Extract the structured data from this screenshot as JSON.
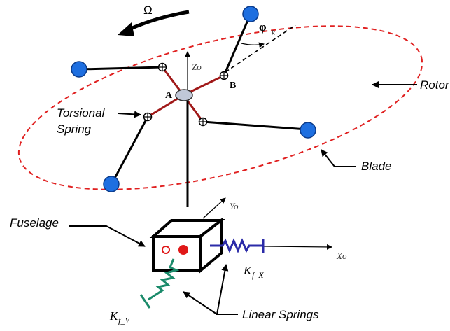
{
  "labels": {
    "omega": "Ω",
    "phi": "φ",
    "phi_sub": "k",
    "z_axis": "Zo",
    "y_axis": "Yo",
    "x_axis": "Xo",
    "point_a": "A",
    "point_b": "B",
    "rotor": "Rotor",
    "torsional_line1": "Torsional",
    "torsional_line2": "Spring",
    "blade": "Blade",
    "fuselage": "Fuselage",
    "kfx_main": "K",
    "kfx_sub": "f_X",
    "kfy_main": "K",
    "kfy_sub": "f_Y",
    "linear_springs": "Linear Springs"
  },
  "colors": {
    "rotor_ellipse": "#e02020",
    "hub_arm": "#a01818",
    "blade_tip": "#1e6fe0",
    "blade_tip_stroke": "#0a3a8a",
    "hub_fill": "#c0c8d8",
    "spring_x": "#2b2ba8",
    "spring_y": "#1a8a6a",
    "fuselage_dot": "#e01818"
  }
}
